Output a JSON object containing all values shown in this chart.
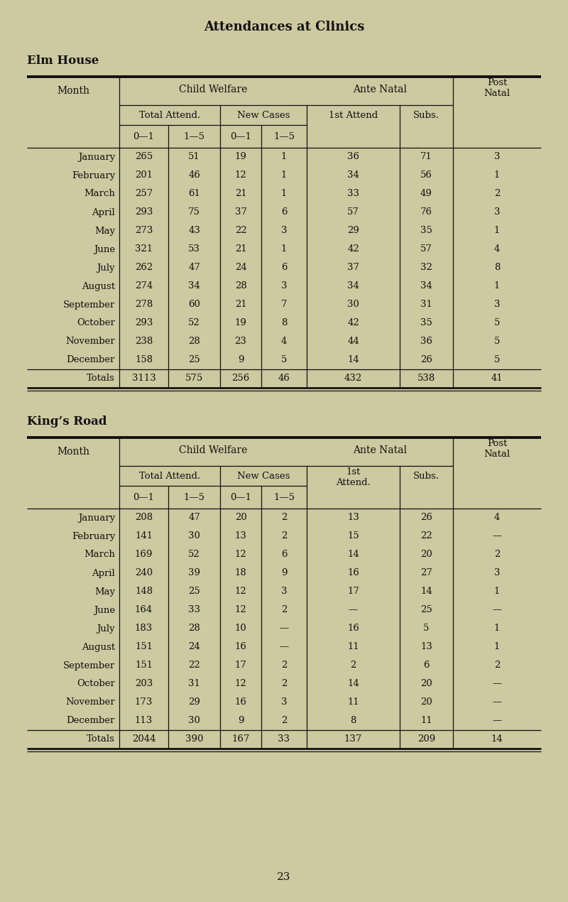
{
  "title": "Attendances at Clinics",
  "bg_color": "#cdc9a0",
  "table1_title": "Elm House",
  "table2_title": "King’s Road",
  "page_number": "23",
  "elm_months": [
    "January",
    "February",
    "March",
    "April",
    "May",
    "June",
    "July",
    "August",
    "September",
    "October",
    "November",
    "December",
    "Totals"
  ],
  "elm_data": [
    [
      "265",
      "51",
      "19",
      "1",
      "36",
      "71",
      "3"
    ],
    [
      "201",
      "46",
      "12",
      "1",
      "34",
      "56",
      "1"
    ],
    [
      "257",
      "61",
      "21",
      "1",
      "33",
      "49",
      "2"
    ],
    [
      "293",
      "75",
      "37",
      "6",
      "57",
      "76",
      "3"
    ],
    [
      "273",
      "43",
      "22",
      "3",
      "29",
      "35",
      "1"
    ],
    [
      "321",
      "53",
      "21",
      "1",
      "42",
      "57",
      "4"
    ],
    [
      "262",
      "47",
      "24",
      "6",
      "37",
      "32",
      "8"
    ],
    [
      "274",
      "34",
      "28",
      "3",
      "34",
      "34",
      "1"
    ],
    [
      "278",
      "60",
      "21",
      "7",
      "30",
      "31",
      "3"
    ],
    [
      "293",
      "52",
      "19",
      "8",
      "42",
      "35",
      "5"
    ],
    [
      "238",
      "28",
      "23",
      "4",
      "44",
      "36",
      "5"
    ],
    [
      "158",
      "25",
      "9",
      "5",
      "14",
      "26",
      "5"
    ],
    [
      "3113",
      "575",
      "256",
      "46",
      "432",
      "538",
      "41"
    ]
  ],
  "kings_months": [
    "January",
    "February",
    "March",
    "April",
    "May",
    "June",
    "July",
    "August",
    "September",
    "October",
    "November",
    "December",
    "Totals"
  ],
  "kings_data": [
    [
      "208",
      "47",
      "20",
      "2",
      "13",
      "26",
      "4"
    ],
    [
      "141",
      "30",
      "13",
      "2",
      "15",
      "22",
      "—"
    ],
    [
      "169",
      "52",
      "12",
      "6",
      "14",
      "20",
      "2"
    ],
    [
      "240",
      "39",
      "18",
      "9",
      "16",
      "27",
      "3"
    ],
    [
      "148",
      "25",
      "12",
      "3",
      "17",
      "14",
      "1"
    ],
    [
      "164",
      "33",
      "12",
      "2",
      "—",
      "25",
      "—"
    ],
    [
      "183",
      "28",
      "10",
      "—",
      "16",
      "5",
      "1"
    ],
    [
      "151",
      "24",
      "16",
      "—",
      "11",
      "13",
      "1"
    ],
    [
      "151",
      "22",
      "17",
      "2",
      "2",
      "6",
      "2"
    ],
    [
      "203",
      "31",
      "12",
      "2",
      "14",
      "20",
      "—"
    ],
    [
      "173",
      "29",
      "16",
      "3",
      "11",
      "20",
      "—"
    ],
    [
      "113",
      "30",
      "9",
      "2",
      "8",
      "11",
      "—"
    ],
    [
      "2044",
      "390",
      "167",
      "33",
      "137",
      "209",
      "14"
    ]
  ]
}
